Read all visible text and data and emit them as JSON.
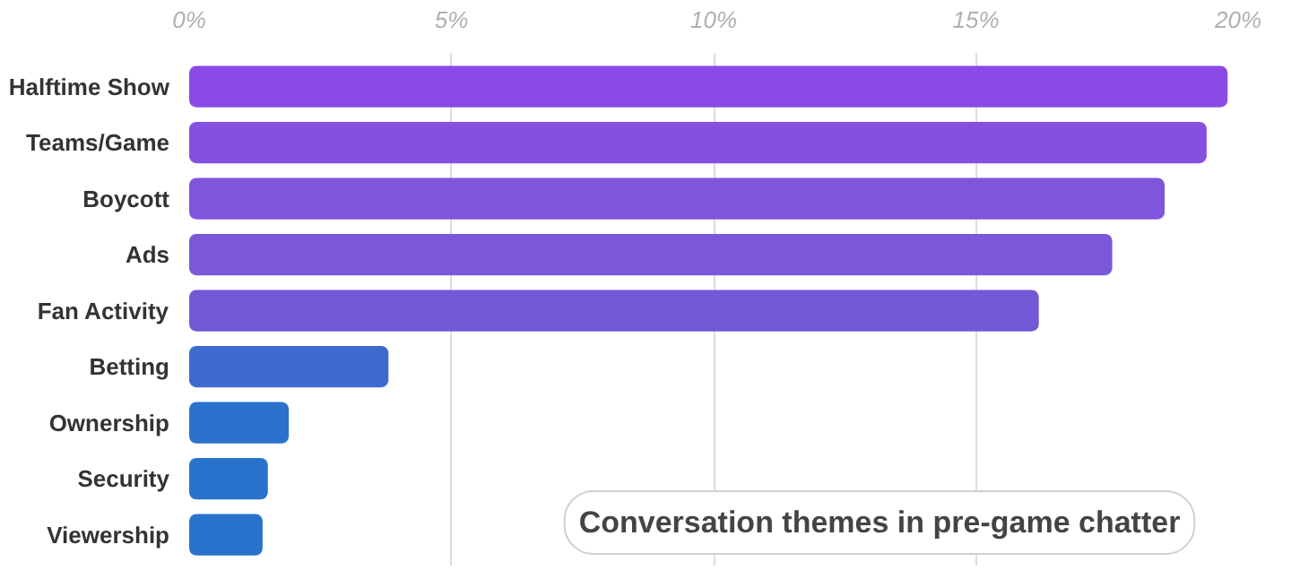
{
  "chart_data": {
    "type": "bar",
    "orientation": "horizontal",
    "title": "Conversation themes in pre-game chatter",
    "categories": [
      "Halftime Show",
      "Teams/Game",
      "Boycott",
      "Ads",
      "Fan Activity",
      "Betting",
      "Ownership",
      "Security",
      "Viewership"
    ],
    "values": [
      19.8,
      19.4,
      18.6,
      17.6,
      16.2,
      3.8,
      1.9,
      1.5,
      1.4
    ],
    "colors": [
      "#8a4ae6",
      "#8550e0",
      "#7f55dc",
      "#7a58d8",
      "#7259d6",
      "#3f6ad0",
      "#2b72cc",
      "#2a73cc",
      "#2a73cc"
    ],
    "xlim": [
      0,
      20
    ],
    "xticks": [
      {
        "value": 0,
        "label": "0%"
      },
      {
        "value": 5,
        "label": "5%"
      },
      {
        "value": 10,
        "label": "10%"
      },
      {
        "value": 15,
        "label": "15%"
      },
      {
        "value": 20,
        "label": "20%"
      }
    ],
    "grid": "x"
  }
}
